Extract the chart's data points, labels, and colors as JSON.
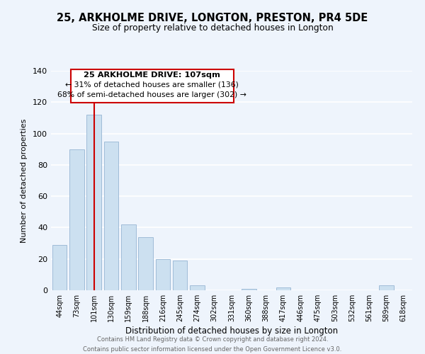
{
  "title": "25, ARKHOLME DRIVE, LONGTON, PRESTON, PR4 5DE",
  "subtitle": "Size of property relative to detached houses in Longton",
  "xlabel": "Distribution of detached houses by size in Longton",
  "ylabel": "Number of detached properties",
  "bar_labels": [
    "44sqm",
    "73sqm",
    "101sqm",
    "130sqm",
    "159sqm",
    "188sqm",
    "216sqm",
    "245sqm",
    "274sqm",
    "302sqm",
    "331sqm",
    "360sqm",
    "388sqm",
    "417sqm",
    "446sqm",
    "475sqm",
    "503sqm",
    "532sqm",
    "561sqm",
    "589sqm",
    "618sqm"
  ],
  "bar_values": [
    29,
    90,
    112,
    95,
    42,
    34,
    20,
    19,
    3,
    0,
    0,
    1,
    0,
    2,
    0,
    0,
    0,
    0,
    0,
    3,
    0
  ],
  "bar_color": "#cce0f0",
  "bar_edge_color": "#a0bcd8",
  "vline_x": 2,
  "vline_color": "#cc0000",
  "ylim": [
    0,
    140
  ],
  "yticks": [
    0,
    20,
    40,
    60,
    80,
    100,
    120,
    140
  ],
  "annotation_title": "25 ARKHOLME DRIVE: 107sqm",
  "annotation_line1": "← 31% of detached houses are smaller (136)",
  "annotation_line2": "68% of semi-detached houses are larger (302) →",
  "annotation_box_color": "#ffffff",
  "annotation_box_edge": "#cc0000",
  "footer_line1": "Contains HM Land Registry data © Crown copyright and database right 2024.",
  "footer_line2": "Contains public sector information licensed under the Open Government Licence v3.0.",
  "bg_color": "#eef4fc",
  "plot_bg_color": "#eef4fc",
  "grid_color": "#ffffff"
}
